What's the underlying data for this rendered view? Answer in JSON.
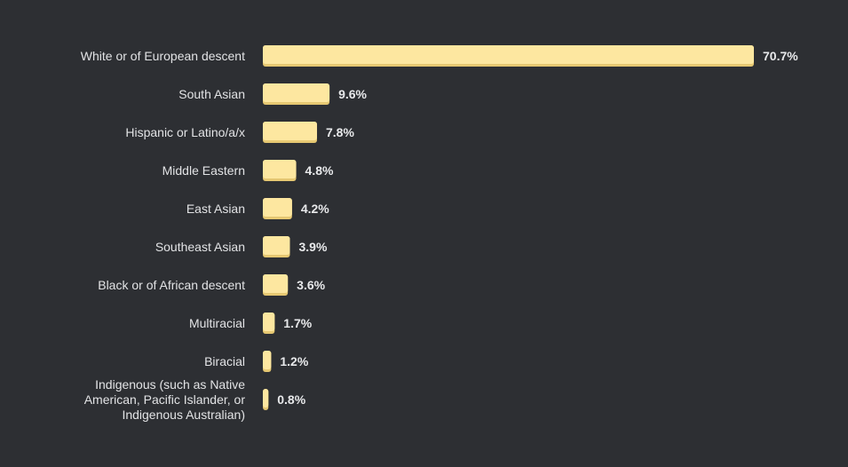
{
  "colors": {
    "background": "#2d2f33",
    "bar_fill": "#fde7a0",
    "bar_shadow": "#e6c872",
    "label_text": "#e2e3e5",
    "value_text": "#e8e9eb"
  },
  "chart_data": {
    "type": "bar",
    "orientation": "horizontal",
    "title": "",
    "xlabel": "",
    "ylabel": "",
    "value_suffix": "%",
    "xlim": [
      0,
      70.7
    ],
    "grid": false,
    "legend": "none",
    "categories": [
      [
        "White or of European descent"
      ],
      [
        "South Asian"
      ],
      [
        "Hispanic or Latino/a/x"
      ],
      [
        "Middle Eastern"
      ],
      [
        "East Asian"
      ],
      [
        "Southeast Asian"
      ],
      [
        "Black or of African descent"
      ],
      [
        "Multiracial"
      ],
      [
        "Biracial"
      ],
      [
        "Indigenous (such as Native",
        "American, Pacific Islander, or",
        "Indigenous Australian)"
      ]
    ],
    "values": [
      70.7,
      9.6,
      7.8,
      4.8,
      4.2,
      3.9,
      3.6,
      1.7,
      1.2,
      0.8
    ],
    "value_labels": [
      "70.7%",
      "9.6%",
      "7.8%",
      "4.8%",
      "4.2%",
      "3.9%",
      "3.6%",
      "1.7%",
      "1.2%",
      "0.8%"
    ]
  }
}
